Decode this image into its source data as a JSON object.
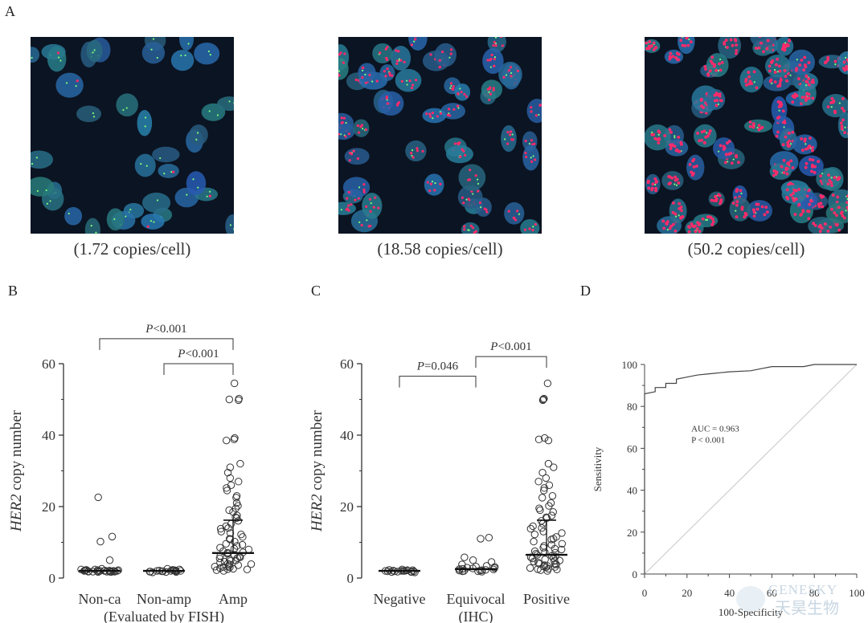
{
  "panels": {
    "A": {
      "letter": "A",
      "images": [
        {
          "caption": "(1.72 copies/cell)",
          "copies_per_cell": 1.72
        },
        {
          "caption": "(18.58 copies/cell)",
          "copies_per_cell": 18.58
        },
        {
          "caption": "(50.2 copies/cell)",
          "copies_per_cell": 50.2
        }
      ]
    },
    "B": {
      "letter": "B"
    },
    "C": {
      "letter": "C"
    },
    "D": {
      "letter": "D"
    }
  },
  "chart_data": [
    {
      "id": "B",
      "type": "scatter",
      "ylabel_italic": "HER2",
      "ylabel_rest": " copy number",
      "ylim": [
        0,
        60
      ],
      "yticks": [
        "0",
        "20",
        "40",
        "60"
      ],
      "categories": [
        "Non-ca",
        "Non-amp",
        "Amp"
      ],
      "xlabel": "(Evaluated by FISH)",
      "medians": [
        2.0,
        2.0,
        7.0
      ],
      "upper_bars": [
        null,
        null,
        16.2
      ],
      "series": [
        {
          "name": "Non-ca",
          "values": [
            22.6,
            11.6,
            10.2,
            5.0,
            2.6,
            2.4,
            2.4,
            2.3,
            2.2,
            2.2,
            2.1,
            2.1,
            2.0,
            2.0,
            2.0,
            2.0,
            1.9,
            1.9,
            1.9,
            1.8,
            1.8,
            1.8,
            1.8,
            1.7,
            1.7,
            1.9,
            2.1,
            2.0,
            1.8,
            2.2
          ]
        },
        {
          "name": "Non-amp",
          "values": [
            2.6,
            2.4,
            2.3,
            2.2,
            2.2,
            2.1,
            2.0,
            2.0,
            1.9,
            1.9,
            1.8,
            1.8,
            1.7,
            1.7,
            1.6,
            2.1,
            2.0,
            1.9
          ]
        },
        {
          "name": "Amp",
          "values": [
            54.5,
            50.2,
            50.0,
            49.8,
            39.2,
            38.5,
            38.8,
            32.0,
            31.0,
            29.5,
            28.0,
            26.0,
            25.2,
            24.5,
            22.5,
            21.0,
            20.2,
            19.5,
            18.5,
            17.5,
            16.8,
            16.0,
            15.2,
            14.5,
            13.8,
            13.0,
            12.2,
            11.5,
            10.8,
            10.2,
            9.6,
            9.0,
            8.5,
            8.0,
            7.5,
            7.2,
            6.8,
            6.5,
            6.2,
            5.8,
            5.5,
            5.2,
            4.9,
            4.6,
            4.3,
            4.0,
            3.8,
            3.6,
            3.4,
            3.2,
            3.0,
            2.8,
            2.6,
            2.4,
            2.2,
            2.0,
            11.0,
            8.2,
            6.0,
            4.8,
            3.9,
            3.1,
            2.5,
            9.3,
            7.1,
            5.6,
            12.6,
            14.0,
            17.0,
            19.0,
            23.0,
            27.0
          ]
        }
      ],
      "annotations": [
        {
          "italic": "P",
          "text": "<0.001",
          "from": 0,
          "to": 2,
          "y": 67.0
        },
        {
          "italic": "P",
          "text": "<0.001",
          "from": 1,
          "to": 2,
          "y": 60.0
        }
      ]
    },
    {
      "id": "C",
      "type": "scatter",
      "ylabel_italic": "HER2",
      "ylabel_rest": " copy number",
      "ylim": [
        0,
        60
      ],
      "yticks": [
        "0",
        "20",
        "40",
        "60"
      ],
      "categories": [
        "Negative",
        "Equivocal",
        "Positive"
      ],
      "xlabel": "(IHC)",
      "medians": [
        2.0,
        2.5,
        6.5
      ],
      "upper_bars": [
        null,
        null,
        16.2
      ],
      "series": [
        {
          "name": "Negative",
          "values": [
            2.4,
            2.3,
            2.2,
            2.1,
            2.1,
            2.0,
            2.0,
            2.0,
            1.9,
            1.9,
            1.8,
            1.8,
            1.7,
            1.7,
            1.6,
            2.2,
            2.0,
            1.9
          ]
        },
        {
          "name": "Equivocal",
          "values": [
            11.3,
            11.0,
            5.8,
            5.0,
            4.5,
            3.8,
            3.4,
            3.1,
            2.9,
            2.7,
            2.5,
            2.4,
            2.3,
            2.2,
            2.1,
            2.0,
            1.9,
            1.8,
            2.6,
            2.8,
            3.2,
            2.1,
            1.9
          ]
        },
        {
          "name": "Positive",
          "values": [
            54.5,
            50.2,
            50.0,
            49.8,
            39.2,
            38.5,
            38.8,
            32.0,
            31.0,
            29.5,
            28.0,
            26.0,
            25.2,
            24.5,
            22.5,
            21.0,
            20.2,
            19.5,
            18.5,
            17.5,
            16.8,
            16.0,
            15.2,
            14.5,
            13.8,
            13.0,
            12.2,
            11.5,
            10.8,
            10.2,
            9.6,
            9.0,
            8.5,
            8.0,
            7.5,
            7.2,
            6.8,
            6.5,
            6.2,
            5.8,
            5.5,
            5.2,
            4.9,
            4.6,
            4.3,
            4.0,
            3.8,
            3.6,
            3.4,
            3.2,
            3.0,
            2.8,
            2.6,
            2.4,
            2.2,
            2.0,
            11.0,
            8.2,
            6.0,
            4.8,
            3.9,
            3.1,
            2.5,
            9.3,
            7.1,
            5.6,
            12.6,
            14.0,
            17.0,
            19.0,
            23.0,
            27.0
          ]
        }
      ],
      "annotations": [
        {
          "italic": "P",
          "text": "=0.046",
          "from": 0,
          "to": 1,
          "y": 56.5
        },
        {
          "italic": "P",
          "text": "<0.001",
          "from": 1,
          "to": 2,
          "y": 62.0
        }
      ]
    },
    {
      "id": "D",
      "type": "line",
      "xlabel": "100-Specificity",
      "ylabel": "Sensitivity",
      "xlim": [
        0,
        100
      ],
      "ylim": [
        0,
        100
      ],
      "xticks": [
        "0",
        "20",
        "40",
        "60",
        "80",
        "100"
      ],
      "yticks": [
        "0",
        "20",
        "40",
        "60",
        "80",
        "100"
      ],
      "annotation_lines": [
        "AUC = 0.963",
        "P < 0.001"
      ],
      "series": [
        {
          "name": "ROC",
          "x": [
            0,
            0,
            5,
            5,
            10,
            10,
            15,
            15,
            20,
            25,
            30,
            35,
            40,
            50,
            55,
            60,
            75,
            80,
            100
          ],
          "y": [
            0,
            86,
            87,
            89,
            89,
            91,
            91,
            93,
            94,
            95,
            95.5,
            96,
            96.5,
            97,
            98,
            99,
            99,
            100,
            100
          ]
        },
        {
          "name": "Reference",
          "x": [
            0,
            100
          ],
          "y": [
            0,
            100
          ]
        }
      ]
    }
  ],
  "watermark": {
    "latin": "GENESKY",
    "cjk": "天昊生物"
  }
}
